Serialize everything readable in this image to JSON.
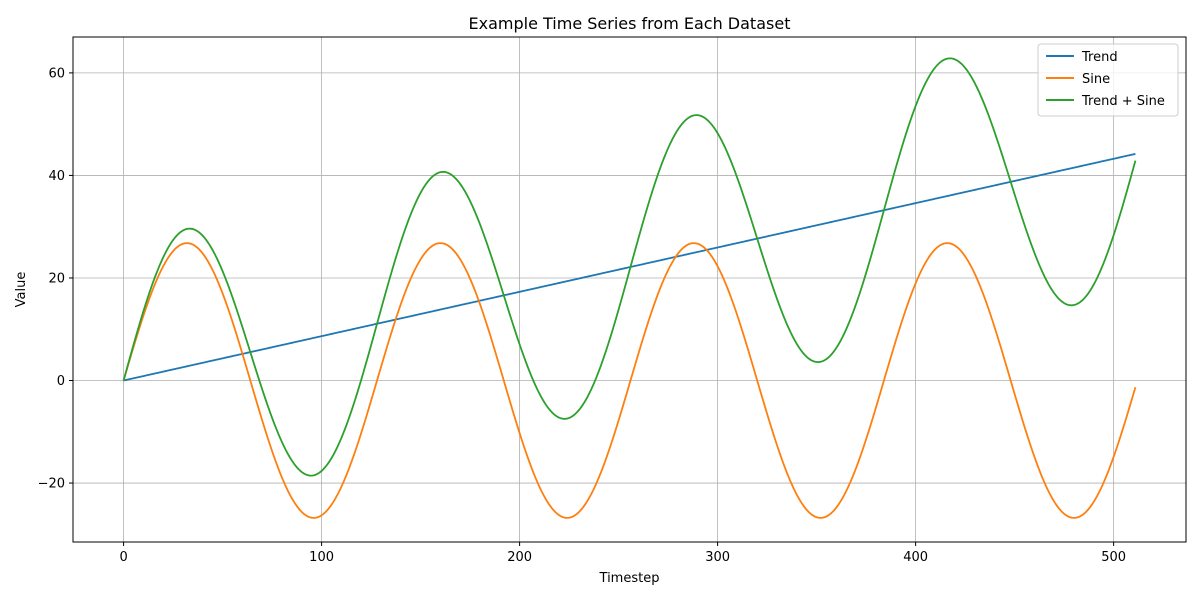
{
  "chart_data": {
    "type": "line",
    "title": "Example Time Series from Each Dataset",
    "xlabel": "Timestep",
    "ylabel": "Value",
    "xlim": [
      -25.55,
      536.55
    ],
    "ylim": [
      -31.5,
      67.0
    ],
    "xticks": [
      0,
      100,
      200,
      300,
      400,
      500
    ],
    "yticks": [
      -20,
      0,
      20,
      40,
      60
    ],
    "ytick_labels": [
      "−20",
      "0",
      "20",
      "40",
      "60"
    ],
    "grid": true,
    "legend_position": "top-right",
    "series": [
      {
        "name": "Trend",
        "color": "#1f77b4",
        "x": [
          0,
          511
        ],
        "y": [
          0,
          44.2
        ]
      },
      {
        "name": "Sine",
        "color": "#ff7f0e",
        "amplitude": 26.8,
        "period": 128,
        "x": [
          0,
          32,
          64,
          96,
          128,
          160,
          192,
          224,
          256,
          288,
          320,
          352,
          384,
          416,
          448,
          480,
          511
        ],
        "y": [
          0,
          26.8,
          0,
          -26.8,
          0,
          26.8,
          0,
          -26.8,
          0,
          26.8,
          0,
          -26.8,
          0,
          26.8,
          0,
          -26.8,
          -1.3
        ]
      },
      {
        "name": "Trend + Sine",
        "color": "#2ca02c",
        "x": [
          0,
          33,
          95,
          162,
          223,
          289,
          351,
          417,
          479,
          511
        ],
        "y": [
          0,
          29.6,
          -18.6,
          40.8,
          -7.5,
          51.8,
          3.5,
          62.9,
          14.6,
          42.9
        ]
      }
    ]
  }
}
